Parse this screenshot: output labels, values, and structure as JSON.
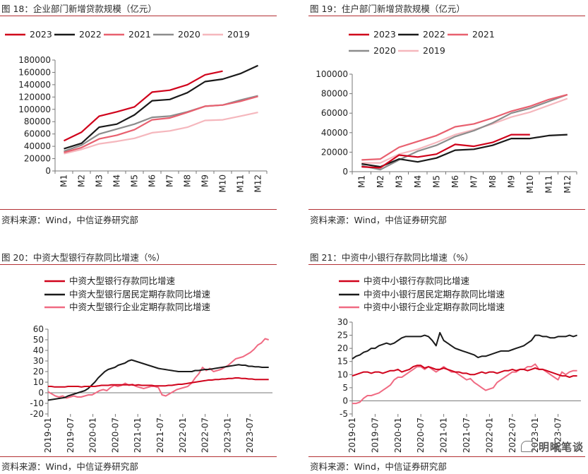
{
  "charts": [
    {
      "title": "图 18：企业部门新增贷款规模（亿元）",
      "source": "资料来源：Wind，中信证券研究部"
    },
    {
      "title": "图 19：住户部门新增贷款规模（亿元）",
      "source": "资料来源：Wind，中信证券研究部"
    },
    {
      "title": "图 20：中资大型银行存款同比增速（%）",
      "source": "资料来源：Wind，中信证券研究部"
    },
    {
      "title": "图 21：中资中小银行存款同比增速（%）",
      "source": "资料来源：Wind，中信证券研究部"
    }
  ],
  "watermark": "明晰笔谈",
  "chart_data": [
    {
      "type": "line",
      "title": "图 18：企业部门新增贷款规模（亿元）",
      "categories": [
        "M1",
        "M2",
        "M3",
        "M4",
        "M5",
        "M6",
        "M7",
        "M8",
        "M9",
        "M10",
        "M11",
        "M12"
      ],
      "ylim": [
        0,
        180000
      ],
      "yticks": [
        "0",
        "20000",
        "40000",
        "60000",
        "80000",
        "100000",
        "120000",
        "140000",
        "160000",
        "180000"
      ],
      "legend_placement": "top",
      "series": [
        {
          "name": "2023",
          "color": "#d0021b",
          "values": [
            49000,
            63000,
            89000,
            96000,
            104000,
            128000,
            131000,
            140000,
            156000,
            162000,
            null,
            null
          ]
        },
        {
          "name": "2022",
          "color": "#1a1a1a",
          "values": [
            36000,
            45000,
            71000,
            76000,
            91000,
            114000,
            116000,
            127000,
            145000,
            149000,
            158000,
            171000
          ]
        },
        {
          "name": "2021",
          "color": "#e8606f",
          "values": [
            30000,
            38000,
            52000,
            58000,
            67000,
            83000,
            86000,
            95000,
            105000,
            107000,
            113000,
            121000
          ]
        },
        {
          "name": "2020",
          "color": "#8c8c8c",
          "values": [
            32000,
            42000,
            60000,
            68000,
            76000,
            87000,
            89000,
            96000,
            105000,
            107000,
            115000,
            122000
          ]
        },
        {
          "name": "2019",
          "color": "#f5b7bd",
          "values": [
            28000,
            35000,
            44000,
            48000,
            53000,
            62000,
            65000,
            71000,
            82000,
            83000,
            89000,
            95000
          ]
        }
      ]
    },
    {
      "type": "line",
      "title": "图 19：住户部门新增贷款规模（亿元）",
      "categories": [
        "M1",
        "M2",
        "M3",
        "M4",
        "M5",
        "M6",
        "M7",
        "M8",
        "M9",
        "M10",
        "M11",
        "M12"
      ],
      "ylim": [
        0,
        100000
      ],
      "yticks": [
        "0",
        "20000",
        "40000",
        "60000",
        "80000",
        "100000"
      ],
      "legend_placement": "top",
      "series": [
        {
          "name": "2023",
          "color": "#d0021b",
          "values": [
            5000,
            4000,
            17000,
            15000,
            18000,
            28000,
            26000,
            30000,
            38000,
            38000,
            null,
            null
          ]
        },
        {
          "name": "2022",
          "color": "#1a1a1a",
          "values": [
            8000,
            5000,
            13000,
            10000,
            14000,
            22000,
            23000,
            27000,
            34000,
            34000,
            37000,
            38000
          ]
        },
        {
          "name": "2021",
          "color": "#e8606f",
          "values": [
            12000,
            13000,
            25000,
            31000,
            37000,
            46000,
            49000,
            55000,
            62000,
            67000,
            74000,
            79000
          ]
        },
        {
          "name": "2020",
          "color": "#8c8c8c",
          "values": [
            6000,
            2000,
            12000,
            21000,
            27000,
            36000,
            42000,
            50000,
            60000,
            65000,
            72000,
            79000
          ]
        },
        {
          "name": "2019",
          "color": "#f5b7bd",
          "values": [
            9000,
            9000,
            18000,
            23000,
            30000,
            38000,
            43000,
            49000,
            56000,
            61000,
            68000,
            75000
          ]
        }
      ]
    },
    {
      "type": "line",
      "title": "图 20：中资大型银行存款同比增速（%）",
      "x_labels": [
        "2019-01",
        "2019-07",
        "2020-01",
        "2020-07",
        "2021-01",
        "2021-07",
        "2022-01",
        "2022-07",
        "2023-01",
        "2023-07"
      ],
      "x_start": "2019-01",
      "ylim": [
        -20,
        60
      ],
      "yticks": [
        "-20",
        "-10",
        "0",
        "10",
        "20",
        "30",
        "40",
        "50",
        "60"
      ],
      "legend_placement": "top",
      "series": [
        {
          "name": "中资大型银行存款同比增速",
          "color": "#d0021b",
          "values": [
            6,
            6,
            5.5,
            5.5,
            5.5,
            5.5,
            6,
            6,
            6,
            6,
            5.5,
            6,
            6,
            6,
            6,
            6.5,
            7,
            7,
            7,
            7.5,
            7.5,
            7.5,
            7.5,
            7.5,
            7.5,
            7.5,
            7,
            7.5,
            7,
            7,
            7,
            7,
            6.5,
            6.5,
            6.5,
            6.5,
            7,
            7,
            7.5,
            8,
            8,
            8.5,
            9,
            9.5,
            10,
            10.5,
            11,
            11.5,
            12,
            12,
            12.5,
            12.5,
            13,
            13,
            13.5,
            13.5,
            14,
            14,
            13.5,
            13.5,
            13,
            13,
            12.5,
            12.5,
            12.5,
            12.5,
            12.5
          ]
        },
        {
          "name": "中资大型银行居民定期存款同比增速",
          "color": "#1a1a1a",
          "values": [
            -7,
            -6.5,
            -6,
            -5.5,
            -5,
            -4.5,
            -3,
            -2,
            -1,
            0,
            1,
            2,
            4,
            7,
            10,
            14,
            17,
            20,
            22,
            23,
            24,
            26,
            27,
            28,
            30,
            31,
            30,
            29,
            28,
            27,
            26,
            25,
            24,
            23,
            22.5,
            22,
            21.5,
            21,
            20.5,
            20,
            20,
            20,
            20,
            20,
            21,
            21,
            21.5,
            22,
            22,
            22.5,
            23,
            23.5,
            24,
            24.5,
            25,
            25.5,
            26,
            26.5,
            26,
            26,
            25,
            25,
            24.5,
            24.5,
            24,
            24,
            24
          ]
        },
        {
          "name": "中资大型银行企业定期存款同比增速",
          "color": "#f06a82",
          "values": [
            1,
            -1,
            -3,
            -4,
            -3,
            -5,
            -4,
            -3,
            -4,
            -4,
            -3,
            -2,
            -2,
            0,
            2,
            3,
            2,
            5,
            7,
            6,
            7,
            9,
            7,
            8,
            6,
            5,
            4,
            5,
            6,
            6,
            5,
            -2,
            -3,
            -1,
            1,
            3,
            4,
            5,
            6,
            9,
            14,
            18,
            24,
            21,
            23,
            20,
            21,
            22,
            24,
            26,
            29,
            32,
            33,
            34,
            36,
            38,
            41,
            45,
            47,
            51,
            50
          ]
        }
      ]
    },
    {
      "type": "line",
      "title": "图 21：中资中小银行存款同比增速（%）",
      "x_labels": [
        "2019-01",
        "2019-07",
        "2020-01",
        "2020-07",
        "2021-01",
        "2021-07",
        "2022-01",
        "2022-07",
        "2023-01",
        "2023-07"
      ],
      "x_start": "2019-01",
      "ylim": [
        -5,
        30
      ],
      "yticks": [
        "-5",
        "0",
        "5",
        "10",
        "15",
        "20",
        "25",
        "30"
      ],
      "legend_placement": "top",
      "series": [
        {
          "name": "中资中小银行存款同比增速",
          "color": "#d0021b",
          "values": [
            9.5,
            10,
            10.5,
            11,
            11,
            10.5,
            11,
            11,
            10.5,
            11,
            11.5,
            11.5,
            12,
            11,
            11.5,
            12,
            13,
            13.5,
            13.5,
            12.5,
            13,
            12.5,
            12,
            12,
            12.5,
            12,
            11.5,
            11,
            11,
            10.5,
            10.5,
            10,
            10,
            10.5,
            11,
            10.5,
            11,
            11,
            10.5,
            11,
            11.5,
            11.5,
            12,
            11.5,
            12,
            12,
            11.5,
            12,
            12.5,
            12,
            12,
            11.5,
            11,
            10.5,
            10,
            9.5,
            9.5,
            9,
            9.5,
            9.5
          ]
        },
        {
          "name": "中资中小银行居民定期存款同比增速",
          "color": "#1a1a1a",
          "values": [
            16,
            17,
            17.5,
            18.5,
            19,
            20,
            20,
            21,
            21.5,
            22,
            21.5,
            22,
            23,
            24,
            24.5,
            24.5,
            24.5,
            24.5,
            24.5,
            25,
            24.5,
            23,
            21,
            26,
            23,
            22,
            21,
            20,
            19.5,
            19,
            18.5,
            18,
            17.5,
            16.5,
            17,
            17,
            17.5,
            18,
            18.5,
            19,
            19,
            19,
            19.5,
            20,
            20.5,
            21,
            22,
            23,
            25,
            25,
            24.5,
            24.5,
            24,
            24,
            24.5,
            24.5,
            24.5,
            25,
            24.5,
            25
          ]
        },
        {
          "name": "中资中小银行企业定期存款同比增速",
          "color": "#f06a82",
          "values": [
            -1,
            -1,
            -0.5,
            1,
            2,
            2,
            2.5,
            3,
            4,
            5,
            6,
            8,
            9,
            9,
            10,
            11,
            12,
            13,
            13,
            12,
            13,
            12,
            11,
            12,
            13,
            12,
            11,
            11,
            10,
            9,
            8,
            8.5,
            7,
            6,
            5,
            4,
            4.5,
            5,
            7,
            8,
            9,
            10,
            11,
            11,
            12,
            12,
            13,
            13,
            14,
            12,
            12,
            11,
            10,
            9,
            8,
            11,
            10,
            11,
            11.5,
            11.5
          ]
        }
      ]
    }
  ]
}
